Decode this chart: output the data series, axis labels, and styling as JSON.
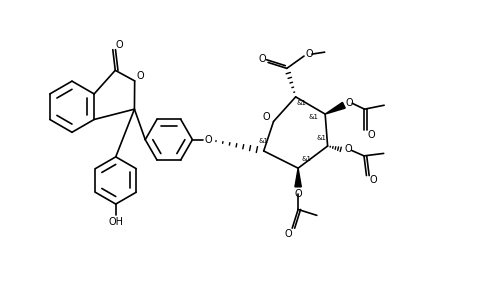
{
  "background_color": "#ffffff",
  "line_color": "#000000",
  "line_width": 1.2,
  "fig_width": 4.93,
  "fig_height": 2.97,
  "dpi": 100,
  "xlim": [
    0,
    10
  ],
  "ylim": [
    0,
    6
  ]
}
